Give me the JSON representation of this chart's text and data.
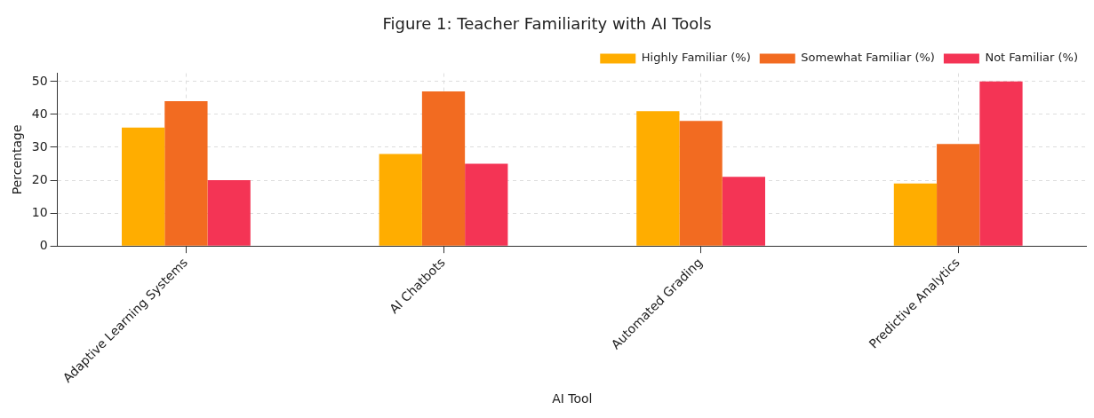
{
  "chart_data": {
    "type": "bar",
    "title": "Figure 1: Teacher Familiarity with AI Tools",
    "xlabel": "AI Tool",
    "ylabel": "Percentage",
    "categories": [
      "Adaptive Learning Systems",
      "AI Chatbots",
      "Automated Grading",
      "Predictive Analytics"
    ],
    "series": [
      {
        "name": "Highly Familiar (%)",
        "color": "#ffad00",
        "values": [
          36,
          28,
          41,
          19
        ]
      },
      {
        "name": "Somewhat Familiar (%)",
        "color": "#f26b21",
        "values": [
          44,
          47,
          38,
          31
        ]
      },
      {
        "name": "Not Familiar (%)",
        "color": "#f43455",
        "values": [
          20,
          25,
          21,
          50
        ]
      }
    ],
    "ylim": [
      0,
      52.5
    ],
    "yticks": [
      0,
      10,
      20,
      30,
      40,
      50
    ],
    "grid": true,
    "legend": "top right"
  }
}
